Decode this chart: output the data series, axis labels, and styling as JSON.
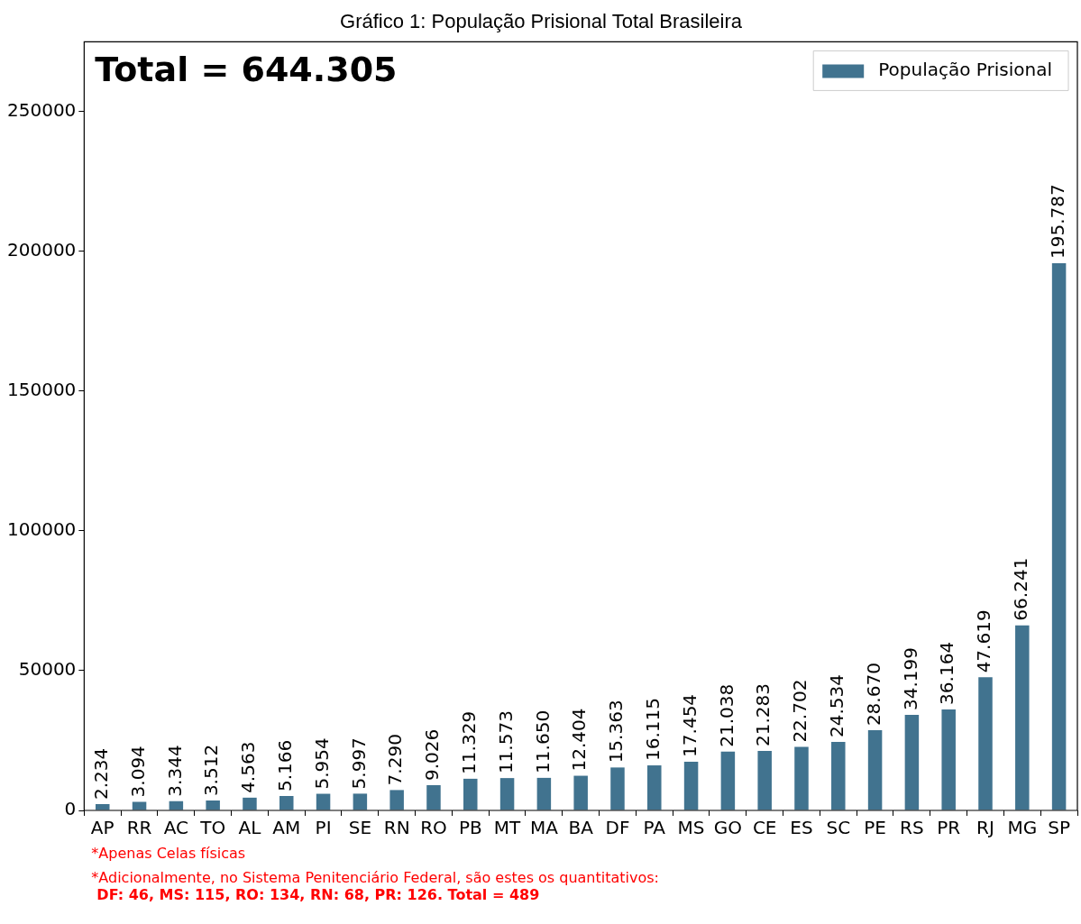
{
  "chart_data": {
    "type": "bar",
    "title": "Gráfico 1: População Prisional Total Brasileira",
    "categories": [
      "AP",
      "RR",
      "AC",
      "TO",
      "AL",
      "AM",
      "PI",
      "SE",
      "RN",
      "RO",
      "PB",
      "MT",
      "MA",
      "BA",
      "DF",
      "PA",
      "MS",
      "GO",
      "CE",
      "ES",
      "SC",
      "PE",
      "RS",
      "PR",
      "RJ",
      "MG",
      "SP"
    ],
    "series": [
      {
        "name": "População Prisional",
        "color": "#41738f",
        "values": [
          2234,
          3094,
          3344,
          3512,
          4563,
          5166,
          5954,
          5997,
          7290,
          9026,
          11329,
          11573,
          11650,
          12404,
          15363,
          16115,
          17454,
          21038,
          21283,
          22702,
          24534,
          28670,
          34199,
          36164,
          47619,
          66241,
          195787
        ],
        "value_labels": [
          "2.234",
          "3.094",
          "3.344",
          "3.512",
          "4.563",
          "5.166",
          "5.954",
          "5.997",
          "7.290",
          "9.026",
          "11.329",
          "11.573",
          "11.650",
          "12.404",
          "15.363",
          "16.115",
          "17.454",
          "21.038",
          "21.283",
          "22.702",
          "24.534",
          "28.670",
          "34.199",
          "36.164",
          "47.619",
          "66.241",
          "195.787"
        ]
      }
    ],
    "ylim": [
      0,
      275000
    ],
    "yticks": [
      0,
      50000,
      100000,
      150000,
      200000,
      250000
    ],
    "grid": false,
    "legend": "top right",
    "annotations": [
      "Total = 644.305",
      "*Apenas Celas físicas",
      "*Adicionalmente, no Sistema Penitenciário Federal, são estes os quantitativos:",
      "DF: 46, MS: 115, RO: 134, RN: 68, PR: 126. Total = 489"
    ]
  }
}
